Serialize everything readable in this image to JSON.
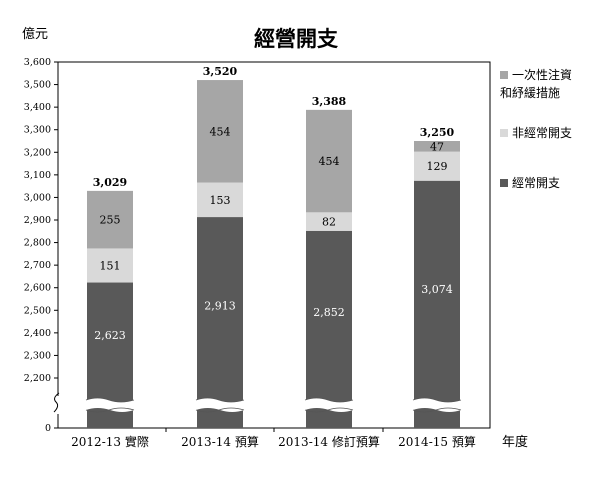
{
  "chart_data": {
    "type": "bar",
    "stacked": true,
    "title": "經營開支",
    "ylabel": "億元",
    "xlabel": "年度",
    "ylim": [
      2100,
      3600
    ],
    "axis_break": true,
    "y_ticks": [
      0,
      2200,
      2300,
      2400,
      2500,
      2600,
      2700,
      2800,
      2900,
      3000,
      3100,
      3200,
      3300,
      3400,
      3500,
      3600
    ],
    "y_tick_labels": [
      "0",
      "2,200",
      "2,300",
      "2,400",
      "2,500",
      "2,600",
      "2,700",
      "2,800",
      "2,900",
      "3,000",
      "3,100",
      "3,200",
      "3,300",
      "3,400",
      "3,500",
      "3,600"
    ],
    "categories": [
      "2012-13 實際",
      "2013-14 預算",
      "2013-14 修訂預算",
      "2014-15 預算"
    ],
    "series": [
      {
        "name": "經常開支",
        "values": [
          2623,
          2913,
          2852,
          3074
        ],
        "labels": [
          "2,623",
          "2,913",
          "2,852",
          "3,074"
        ],
        "color": "#595959",
        "label_color": "#ffffff"
      },
      {
        "name": "非經常開支",
        "values": [
          151,
          153,
          82,
          129
        ],
        "labels": [
          "151",
          "153",
          "82",
          "129"
        ],
        "color": "#d9d9d9",
        "label_color": "#000000"
      },
      {
        "name": "一次性注資和紓緩措施",
        "values": [
          255,
          454,
          454,
          47
        ],
        "labels": [
          "255",
          "454",
          "454",
          "47"
        ],
        "color": "#a6a6a6",
        "label_color": "#000000"
      }
    ],
    "totals": [
      "3,029",
      "3,520",
      "3,388",
      "3,250"
    ],
    "legend": {
      "placement": "right",
      "items": [
        {
          "lines": [
            "一次性注資",
            "和紓緩措施"
          ],
          "color": "#a6a6a6"
        },
        {
          "lines": [
            "非經常開支"
          ],
          "color": "#d9d9d9"
        },
        {
          "lines": [
            "經常開支"
          ],
          "color": "#595959"
        }
      ]
    },
    "grid": false
  }
}
